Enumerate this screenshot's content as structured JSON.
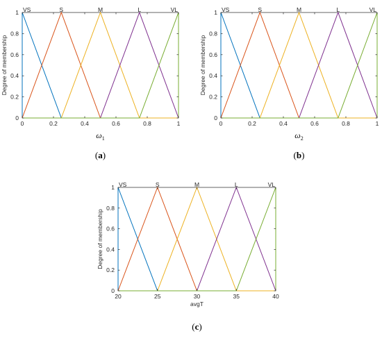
{
  "figure": {
    "series_colors": [
      "#0072BD",
      "#D95319",
      "#EDB120",
      "#7E2F8E",
      "#77AC30"
    ]
  },
  "chart_data": [
    {
      "type": "line",
      "panel_label": "a",
      "xlabel_symbol": "ω",
      "xlabel_subscript": "1",
      "ylabel": "Degree of membership",
      "xlim": [
        0,
        1
      ],
      "ylim": [
        0,
        1
      ],
      "xticks": [
        "0",
        "0.2",
        "0.4",
        "0.6",
        "0.8",
        "1"
      ],
      "yticks": [
        "0",
        "0.2",
        "0.4",
        "0.6",
        "0.8",
        "1"
      ],
      "grid": false,
      "series": [
        {
          "name": "VS",
          "x": [
            0,
            0,
            0.25,
            1
          ],
          "y": [
            0,
            1,
            0,
            0
          ]
        },
        {
          "name": "S",
          "x": [
            0,
            0.25,
            0.5,
            1
          ],
          "y": [
            0,
            1,
            0,
            0
          ]
        },
        {
          "name": "M",
          "x": [
            0,
            0.25,
            0.5,
            0.75,
            1
          ],
          "y": [
            0,
            0,
            1,
            0,
            0
          ]
        },
        {
          "name": "L",
          "x": [
            0,
            0.5,
            0.75,
            1
          ],
          "y": [
            0,
            0,
            1,
            0
          ]
        },
        {
          "name": "VL",
          "x": [
            0,
            0.75,
            1,
            1
          ],
          "y": [
            0,
            0,
            1,
            0
          ]
        }
      ],
      "peaks": [
        0,
        0.25,
        0.5,
        0.75,
        1
      ]
    },
    {
      "type": "line",
      "panel_label": "b",
      "xlabel_symbol": "ω",
      "xlabel_subscript": "2",
      "ylabel": "Degree of membership",
      "xlim": [
        0,
        1
      ],
      "ylim": [
        0,
        1
      ],
      "xticks": [
        "0",
        "0.2",
        "0.4",
        "0.6",
        "0.8",
        "1"
      ],
      "yticks": [
        "0",
        "0.2",
        "0.4",
        "0.6",
        "0.8",
        "1"
      ],
      "grid": false,
      "series": [
        {
          "name": "VS",
          "x": [
            0,
            0,
            0.25,
            1
          ],
          "y": [
            0,
            1,
            0,
            0
          ]
        },
        {
          "name": "S",
          "x": [
            0,
            0.25,
            0.5,
            1
          ],
          "y": [
            0,
            1,
            0,
            0
          ]
        },
        {
          "name": "M",
          "x": [
            0,
            0.25,
            0.5,
            0.75,
            1
          ],
          "y": [
            0,
            0,
            1,
            0,
            0
          ]
        },
        {
          "name": "L",
          "x": [
            0,
            0.5,
            0.75,
            1
          ],
          "y": [
            0,
            0,
            1,
            0
          ]
        },
        {
          "name": "VL",
          "x": [
            0,
            0.75,
            1,
            1
          ],
          "y": [
            0,
            0,
            1,
            0
          ]
        }
      ],
      "peaks": [
        0,
        0.25,
        0.5,
        0.75,
        1
      ]
    },
    {
      "type": "line",
      "panel_label": "c",
      "xlabel": "avgT",
      "ylabel": "Degree of membership",
      "xlim": [
        20,
        40
      ],
      "ylim": [
        0,
        1
      ],
      "xticks": [
        "20",
        "25",
        "30",
        "35",
        "40"
      ],
      "yticks": [
        "0",
        "0.2",
        "0.4",
        "0.6",
        "0.8",
        "1"
      ],
      "grid": false,
      "series": [
        {
          "name": "VS",
          "x": [
            20,
            20,
            25,
            40
          ],
          "y": [
            0,
            1,
            0,
            0
          ]
        },
        {
          "name": "S",
          "x": [
            20,
            25,
            30,
            40
          ],
          "y": [
            0,
            1,
            0,
            0
          ]
        },
        {
          "name": "M",
          "x": [
            20,
            25,
            30,
            35,
            40
          ],
          "y": [
            0,
            0,
            1,
            0,
            0
          ]
        },
        {
          "name": "L",
          "x": [
            20,
            30,
            35,
            40
          ],
          "y": [
            0,
            0,
            1,
            0
          ]
        },
        {
          "name": "VL",
          "x": [
            20,
            35,
            40,
            40
          ],
          "y": [
            0,
            0,
            1,
            0
          ]
        }
      ],
      "peaks": [
        20,
        25,
        30,
        35,
        40
      ]
    }
  ]
}
